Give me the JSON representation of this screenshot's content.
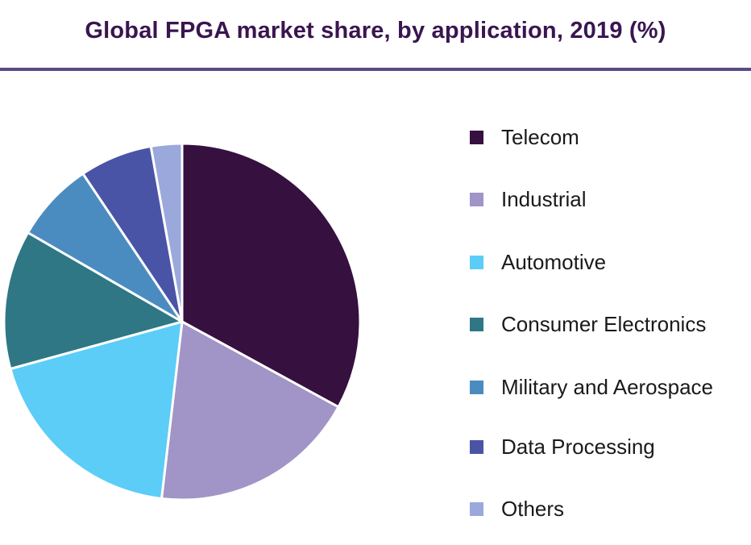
{
  "chart_data": {
    "type": "pie",
    "title": "Global FPGA market share, by application, 2019 (%)",
    "legend_position": "right",
    "start_angle_deg": 0,
    "direction": "clockwise",
    "slices": [
      {
        "name": "Telecom",
        "value": 34.0,
        "color": "#36103f"
      },
      {
        "name": "Industrial",
        "value": 19.5,
        "color": "#a194c7"
      },
      {
        "name": "Automotive",
        "value": 19.5,
        "color": "#5bcdf7"
      },
      {
        "name": "Consumer Electronics",
        "value": 13.0,
        "color": "#2f7785"
      },
      {
        "name": "Military and Aerospace",
        "value": 7.5,
        "color": "#4b8cc0"
      },
      {
        "name": "Data Processing",
        "value": 6.8,
        "color": "#4a54a6"
      },
      {
        "name": "Others",
        "value": 2.9,
        "color": "#9aa8dc"
      }
    ]
  }
}
